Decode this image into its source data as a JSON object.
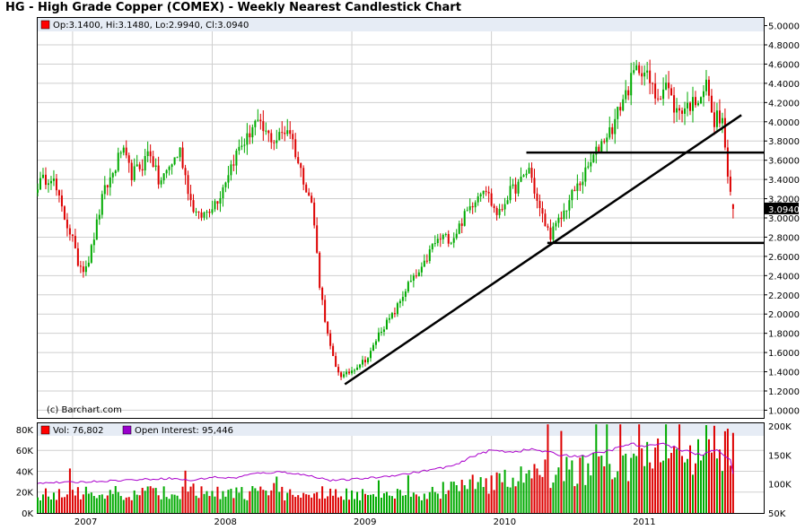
{
  "title": "HG - High Grade Copper (COMEX) - Weekly Nearest Candlestick Chart",
  "ohlc_legend": "Op:3.1400, Hi:3.1480, Lo:2.9940, Cl:3.0940",
  "copyright": "(c) Barchart.com",
  "last_price_label": "3.0940",
  "volume_legend": "Vol: 76,802",
  "oi_legend": "Open Interest: 95,446",
  "colors": {
    "up": "#00aa00",
    "down": "#dd0000",
    "oi": "#aa00cc",
    "legend_box_red": "#ff0000",
    "legend_box_purple": "#9900cc",
    "grid": "#cfcfcf",
    "band": "#e6ecf5"
  },
  "chart_data": [
    {
      "type": "candlestick",
      "x_ticks": [
        "2007",
        "2008",
        "2009",
        "2010",
        "2011"
      ],
      "y_ticks": [
        "1.0000",
        "1.2000",
        "1.4000",
        "1.6000",
        "1.8000",
        "2.0000",
        "2.2000",
        "2.4000",
        "2.6000",
        "2.8000",
        "3.0000",
        "3.2000",
        "3.4000",
        "3.6000",
        "3.8000",
        "4.0000",
        "4.2000",
        "4.4000",
        "4.6000",
        "4.8000",
        "5.0000"
      ],
      "ylim": [
        0.92,
        5.08
      ],
      "x_range": [
        2006.75,
        2011.95
      ],
      "grid": true,
      "anchor_path": [
        [
          2006.75,
          3.35
        ],
        [
          2006.85,
          3.45
        ],
        [
          2006.93,
          3.05
        ],
        [
          2007.0,
          2.78
        ],
        [
          2007.03,
          2.55
        ],
        [
          2007.08,
          2.48
        ],
        [
          2007.12,
          2.58
        ],
        [
          2007.22,
          3.25
        ],
        [
          2007.3,
          3.5
        ],
        [
          2007.35,
          3.72
        ],
        [
          2007.42,
          3.45
        ],
        [
          2007.5,
          3.55
        ],
        [
          2007.55,
          3.72
        ],
        [
          2007.62,
          3.35
        ],
        [
          2007.7,
          3.55
        ],
        [
          2007.77,
          3.7
        ],
        [
          2007.85,
          3.15
        ],
        [
          2007.9,
          3.0
        ],
        [
          2007.95,
          3.05
        ],
        [
          2008.05,
          3.22
        ],
        [
          2008.12,
          3.5
        ],
        [
          2008.2,
          3.75
        ],
        [
          2008.25,
          3.82
        ],
        [
          2008.3,
          4.0
        ],
        [
          2008.38,
          3.88
        ],
        [
          2008.45,
          3.8
        ],
        [
          2008.5,
          3.88
        ],
        [
          2008.55,
          3.95
        ],
        [
          2008.62,
          3.55
        ],
        [
          2008.68,
          3.3
        ],
        [
          2008.72,
          3.1
        ],
        [
          2008.77,
          2.3
        ],
        [
          2008.83,
          1.75
        ],
        [
          2008.88,
          1.45
        ],
        [
          2008.93,
          1.35
        ],
        [
          2008.97,
          1.38
        ],
        [
          2009.05,
          1.48
        ],
        [
          2009.12,
          1.55
        ],
        [
          2009.2,
          1.82
        ],
        [
          2009.3,
          2.0
        ],
        [
          2009.4,
          2.3
        ],
        [
          2009.5,
          2.45
        ],
        [
          2009.58,
          2.72
        ],
        [
          2009.65,
          2.8
        ],
        [
          2009.72,
          2.78
        ],
        [
          2009.8,
          3.0
        ],
        [
          2009.88,
          3.2
        ],
        [
          2009.95,
          3.35
        ],
        [
          2010.0,
          3.15
        ],
        [
          2010.05,
          3.02
        ],
        [
          2010.12,
          3.25
        ],
        [
          2010.2,
          3.35
        ],
        [
          2010.27,
          3.52
        ],
        [
          2010.33,
          3.15
        ],
        [
          2010.38,
          2.95
        ],
        [
          2010.42,
          2.82
        ],
        [
          2010.5,
          3.0
        ],
        [
          2010.58,
          3.25
        ],
        [
          2010.65,
          3.4
        ],
        [
          2010.72,
          3.6
        ],
        [
          2010.8,
          3.82
        ],
        [
          2010.87,
          3.95
        ],
        [
          2010.93,
          4.2
        ],
        [
          2010.98,
          4.35
        ],
        [
          2011.02,
          4.5
        ],
        [
          2011.07,
          4.58
        ],
        [
          2011.12,
          4.45
        ],
        [
          2011.18,
          4.25
        ],
        [
          2011.25,
          4.4
        ],
        [
          2011.32,
          4.1
        ],
        [
          2011.38,
          4.15
        ],
        [
          2011.45,
          4.2
        ],
        [
          2011.5,
          4.3
        ],
        [
          2011.55,
          4.4
        ],
        [
          2011.58,
          4.0
        ],
        [
          2011.62,
          4.05
        ],
        [
          2011.66,
          3.98
        ],
        [
          2011.69,
          3.45
        ],
        [
          2011.72,
          3.12
        ],
        [
          2011.74,
          3.09
        ]
      ],
      "last": {
        "open": 3.14,
        "high": 3.148,
        "low": 2.994,
        "close": 3.094
      },
      "trendlines": [
        {
          "from": [
            2008.95,
            1.27
          ],
          "to": [
            2011.79,
            4.07
          ]
        },
        {
          "from": [
            2010.25,
            3.68
          ],
          "to": [
            2011.95,
            3.68
          ]
        },
        {
          "from": [
            2010.4,
            2.74
          ],
          "to": [
            2011.95,
            2.74
          ]
        }
      ]
    },
    {
      "type": "bar",
      "name": "Vol",
      "y_ticks": [
        "0K",
        "20K",
        "40K",
        "60K",
        "80K"
      ],
      "ylim": [
        0,
        86000
      ],
      "last_value": 76802
    },
    {
      "type": "line",
      "name": "Open Interest",
      "y_ticks": [
        "50K",
        "100K",
        "150K",
        "200K"
      ],
      "ylim": [
        50000,
        205000
      ],
      "path": [
        [
          2006.75,
          102000
        ],
        [
          2007.0,
          103000
        ],
        [
          2007.4,
          107000
        ],
        [
          2007.7,
          110000
        ],
        [
          2007.85,
          106000
        ],
        [
          2008.0,
          112000
        ],
        [
          2008.15,
          110000
        ],
        [
          2008.3,
          118000
        ],
        [
          2008.5,
          121000
        ],
        [
          2008.6,
          118000
        ],
        [
          2008.75,
          112000
        ],
        [
          2008.85,
          106000
        ],
        [
          2009.0,
          108000
        ],
        [
          2009.2,
          112000
        ],
        [
          2009.4,
          118000
        ],
        [
          2009.6,
          126000
        ],
        [
          2009.75,
          133000
        ],
        [
          2009.9,
          152000
        ],
        [
          2010.0,
          158000
        ],
        [
          2010.15,
          156000
        ],
        [
          2010.3,
          160000
        ],
        [
          2010.5,
          150000
        ],
        [
          2010.65,
          148000
        ],
        [
          2010.8,
          155000
        ],
        [
          2010.9,
          162000
        ],
        [
          2011.0,
          170000
        ],
        [
          2011.1,
          163000
        ],
        [
          2011.2,
          172000
        ],
        [
          2011.35,
          160000
        ],
        [
          2011.5,
          150000
        ],
        [
          2011.62,
          160000
        ],
        [
          2011.72,
          140000
        ],
        [
          2011.74,
          95446
        ]
      ],
      "last_value": 95446
    }
  ]
}
